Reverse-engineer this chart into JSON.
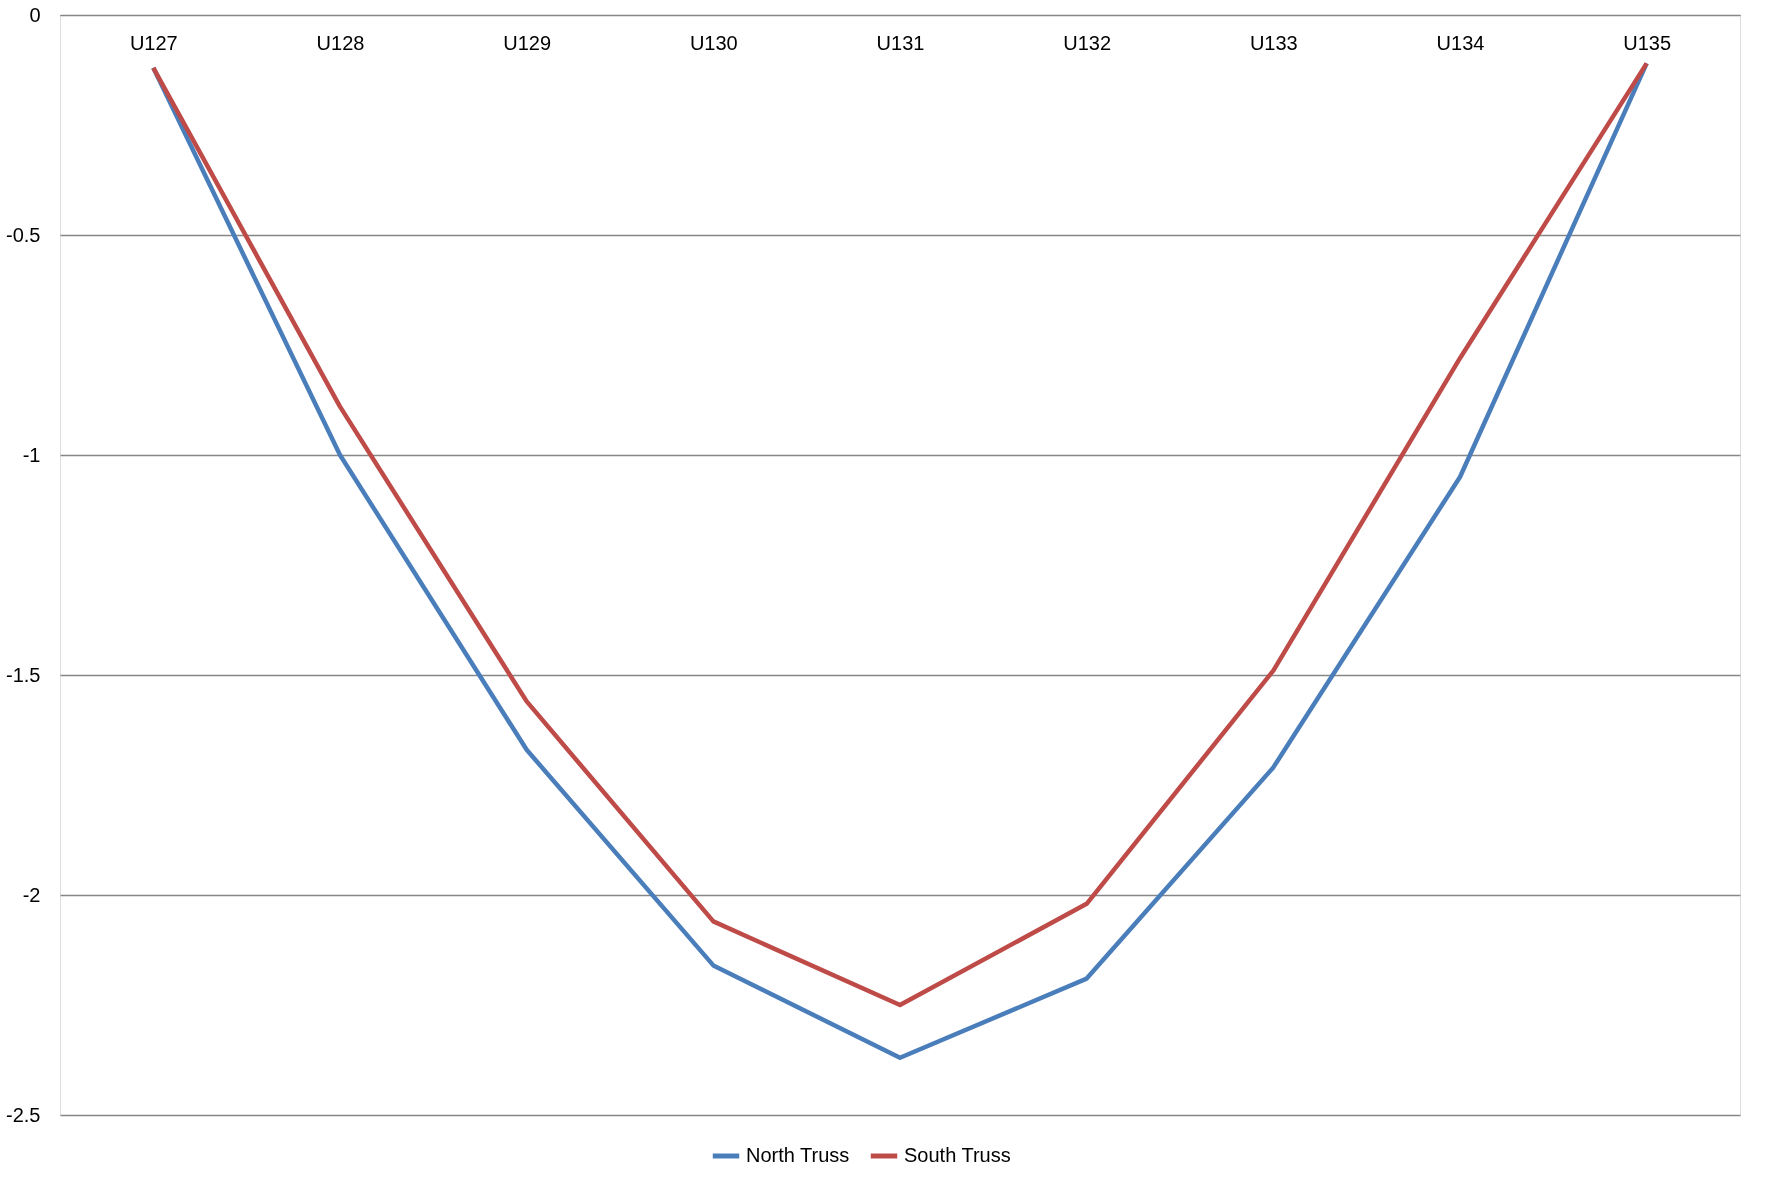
{
  "chart_data": {
    "type": "line",
    "categories": [
      "U127",
      "U128",
      "U129",
      "U130",
      "U131",
      "U132",
      "U133",
      "U134",
      "U135"
    ],
    "series": [
      {
        "name": "North Truss",
        "color": "#4a7ebb",
        "values": [
          -0.12,
          -1.0,
          -1.67,
          -2.16,
          -2.37,
          -2.19,
          -1.71,
          -1.05,
          -0.11
        ]
      },
      {
        "name": "South Truss",
        "color": "#be4b48",
        "values": [
          -0.12,
          -0.89,
          -1.56,
          -2.06,
          -2.25,
          -2.02,
          -1.49,
          -0.78,
          -0.11
        ]
      }
    ],
    "ylim": [
      -2.5,
      0
    ],
    "yticks": [
      -2.5,
      -2,
      -1.5,
      -1,
      -0.5,
      0
    ],
    "grid": "y",
    "legend": "bottom",
    "marker": "none",
    "line_style": "solid"
  }
}
